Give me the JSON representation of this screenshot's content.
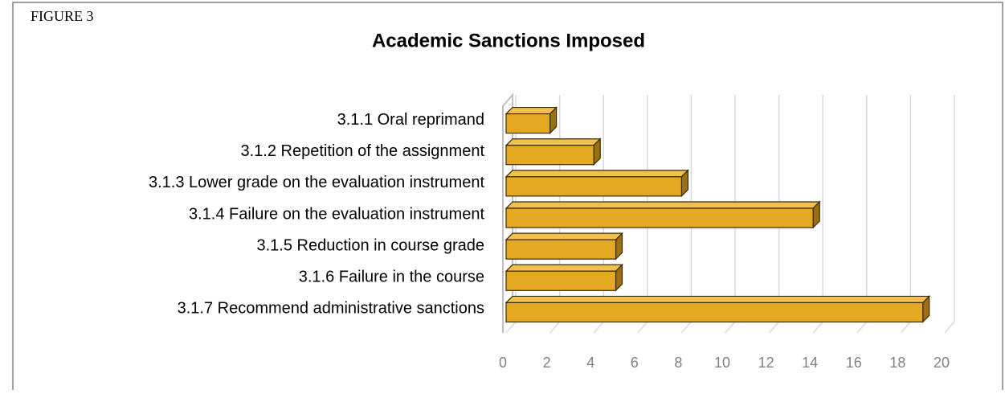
{
  "figure_label": "FIGURE 3",
  "chart_data": {
    "type": "bar3d_horizontal",
    "title": "Academic Sanctions Imposed",
    "categories": [
      "3.1.1 Oral reprimand",
      "3.1.2 Repetition of the assignment",
      "3.1.3 Lower grade on the evaluation instrument",
      "3.1.4 Failure on the evaluation instrument",
      "3.1.5 Reduction in course grade",
      "3.1.6 Failure in the course",
      "3.1.7 Recommend administrative sanctions"
    ],
    "values": [
      2,
      4,
      8,
      14,
      5,
      5,
      19
    ],
    "color": "#e5a823",
    "xlim": [
      0,
      20
    ],
    "xticks": [
      0,
      2,
      4,
      6,
      8,
      10,
      12,
      14,
      16,
      18,
      20
    ],
    "grid": true
  }
}
